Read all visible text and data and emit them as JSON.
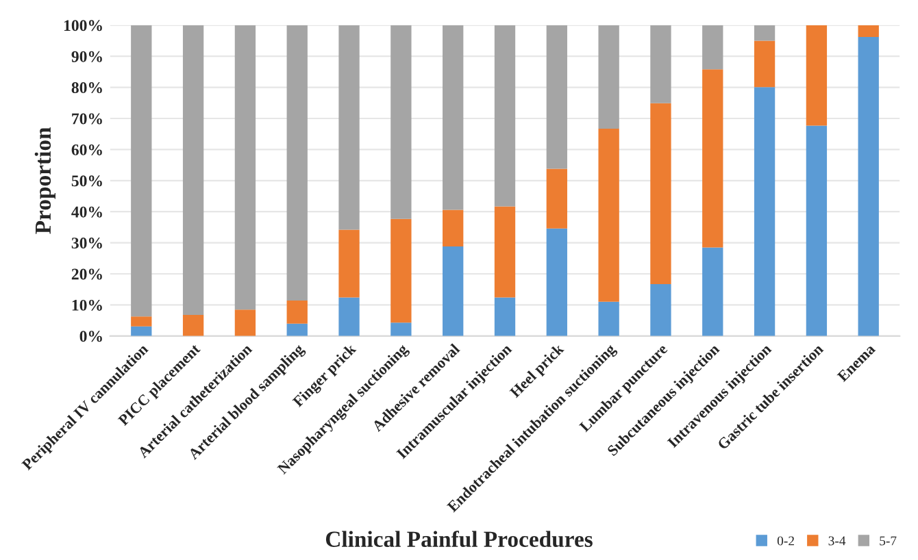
{
  "chart_data": {
    "type": "bar",
    "stacked": true,
    "xlabel": "Clinical Painful Procedures",
    "ylabel": "Proportion",
    "categories": [
      "Peripheral IV cannulation",
      "PICC placement",
      "Arterial catheterization",
      "Arterial blood sampling",
      "Finger prick",
      "Nasopharyngeal suctioning",
      "Adhesive removal",
      "Intramuscular injection",
      "Heel prick",
      "Endotracheal intubation suctioning",
      "Lumbar puncture",
      "Subcutaneous injection",
      "Intravenous injection",
      "Gastric tube insertion",
      "Enema"
    ],
    "series": [
      {
        "name": "0-2",
        "color": "#5b9bd5",
        "values": [
          3.1,
          0,
          0,
          4.0,
          12.4,
          4.3,
          28.8,
          12.4,
          34.6,
          11.0,
          16.7,
          28.5,
          80.1,
          67.7,
          96.2
        ]
      },
      {
        "name": "3-4",
        "color": "#ed7d31",
        "values": [
          3.2,
          6.8,
          8.5,
          7.4,
          21.8,
          33.4,
          11.8,
          29.3,
          19.2,
          55.7,
          58.2,
          57.3,
          14.9,
          32.3,
          3.8
        ]
      },
      {
        "name": "5-7",
        "color": "#a5a5a5",
        "values": [
          93.7,
          93.2,
          91.5,
          88.6,
          65.8,
          62.3,
          59.4,
          58.3,
          46.2,
          33.3,
          25.1,
          14.2,
          5.0,
          0,
          0
        ]
      }
    ],
    "ylim": [
      0,
      100
    ],
    "yticks": [
      {
        "value": 0,
        "label": "0%"
      },
      {
        "value": 10,
        "label": "10%"
      },
      {
        "value": 20,
        "label": "20%"
      },
      {
        "value": 30,
        "label": "30%"
      },
      {
        "value": 40,
        "label": "40%"
      },
      {
        "value": 50,
        "label": "50%"
      },
      {
        "value": 60,
        "label": "60%"
      },
      {
        "value": 70,
        "label": "70%"
      },
      {
        "value": 80,
        "label": "80%"
      },
      {
        "value": 90,
        "label": "90%"
      },
      {
        "value": 100,
        "label": "100%"
      }
    ],
    "grid": "y",
    "legend": "bottom right"
  }
}
